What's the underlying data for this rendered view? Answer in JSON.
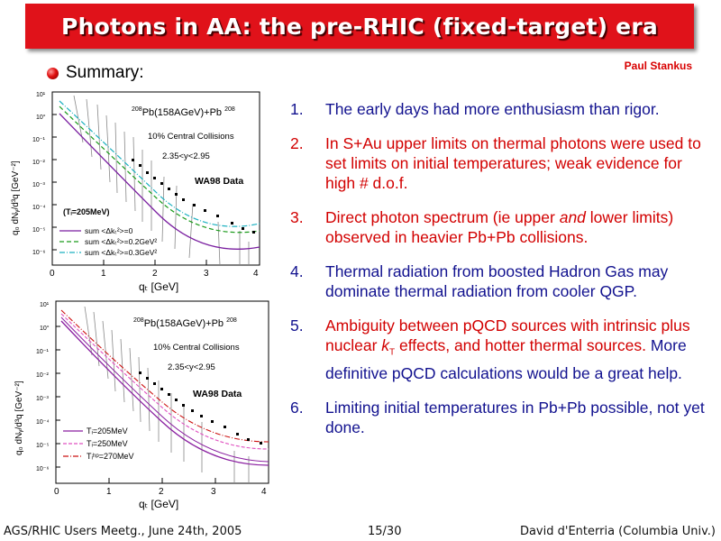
{
  "slide": {
    "title": "Photons in AA: the pre-RHIC (fixed-target) era",
    "author": "Paul Stankus",
    "summary_label": "Summary:",
    "colors": {
      "title_bg": "#e0121a",
      "blue_text": "#12128f",
      "red_text": "#d20000"
    }
  },
  "points": [
    {
      "num": "1.",
      "color": "blue",
      "text": "The early days had more enthusiasm than rigor."
    },
    {
      "num": "2.",
      "color": "red",
      "text": "In S+Au upper limits on thermal photons were used to set limits on initial temperatures; weak evidence for high # d.o.f."
    },
    {
      "num": "3.",
      "color": "red",
      "pre": "Direct photon spectrum (ie upper ",
      "em": "and",
      "post": " lower limits) observed in heavier Pb+Pb collisions."
    },
    {
      "num": "4.",
      "color": "blue",
      "text": "Thermal radiation from boosted Hadron Gas may dominate thermal radiation from cooler QGP."
    },
    {
      "num": "5.",
      "red_pre": "Ambiguity between pQCD sources with intrinsic plus nuclear ",
      "red_k": "k",
      "red_sub": "T",
      "red_post": " effects, and hotter thermal sources.",
      "blue_text": "  More definitive pQCD calculations would be a great help."
    },
    {
      "num": "6.",
      "color": "blue",
      "text": "Limiting initial temperatures in Pb+Pb possible, not yet done."
    }
  ],
  "footer": {
    "left": "AGS/RHIC Users Meetg., June 24th, 2005",
    "center": "15/30",
    "right": "David d'Enterria (Columbia Univ.)"
  },
  "plots": {
    "top": {
      "system": "Pb(158AGeV)+Pb",
      "sup_left": "208",
      "sup_right": "208",
      "centrality": "10% Central Collisions",
      "rapidity": "2.35<y<2.95",
      "badge": "WA98 Data",
      "ti_label": "(Tᵢ=205MeV)",
      "legend": [
        {
          "text": "sum <Δkₜ²>=0",
          "color": "#7a1fa0",
          "dash": ""
        },
        {
          "text": "sum <Δkₜ²>=0.2GeV²",
          "color": "#1a9a1a",
          "dash": "5,3"
        },
        {
          "text": "sum <Δkₜ²>=0.3GeV²",
          "color": "#1ab0c0",
          "dash": "6,2,1,2"
        }
      ],
      "ylabel": "q₀ dNᵧ/d³q  [GeV⁻²]",
      "xlabel": "qₜ [GeV]",
      "xticks": [
        "0",
        "1",
        "2",
        "3",
        "4"
      ],
      "yticks": [
        "10¹",
        "10°",
        "10⁻¹",
        "10⁻²",
        "10⁻³",
        "10⁻⁴",
        "10⁻⁵",
        "10⁻⁶"
      ]
    },
    "bottom": {
      "system": "Pb(158AGeV)+Pb",
      "sup_left": "208",
      "sup_right": "208",
      "centrality": "10% Central Collisions",
      "rapidity": "2.35<y<2.95",
      "badge": "WA98 Data",
      "legend": [
        {
          "text": "Tᵢ=205MeV",
          "color": "#8a1fa0",
          "dash": ""
        },
        {
          "text": "Tᵢ=250MeV",
          "color": "#e050c0",
          "dash": "4,2"
        },
        {
          "text": "Tᵢʰᵖ=270MeV",
          "color": "#cc1010",
          "dash": "6,2,1,2"
        }
      ],
      "ylabel": "q₀ dNᵧ/d³q  [GeV⁻²]",
      "xlabel": "qₜ [GeV]",
      "xticks": [
        "0",
        "1",
        "2",
        "3",
        "4"
      ],
      "yticks": [
        "10¹",
        "10°",
        "10⁻¹",
        "10⁻²",
        "10⁻³",
        "10⁻⁴",
        "10⁻⁵",
        "10⁻⁶"
      ]
    }
  }
}
